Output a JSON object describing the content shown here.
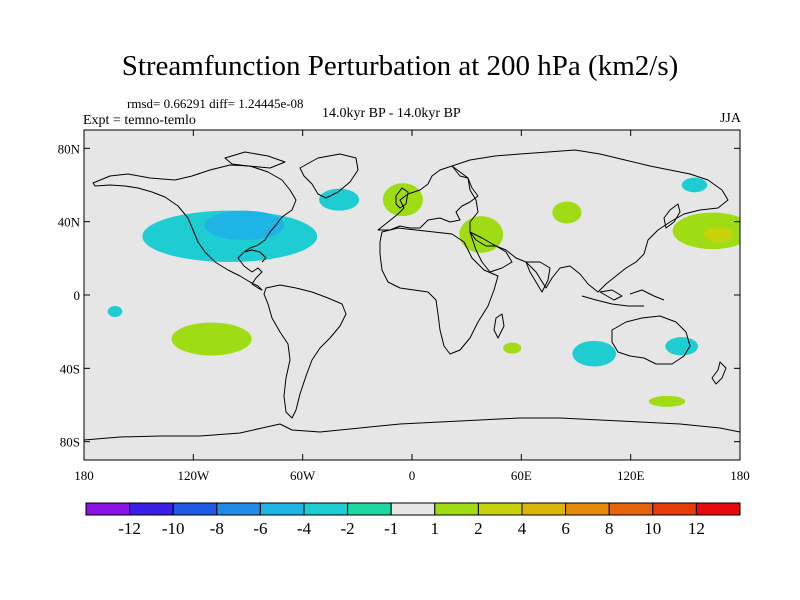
{
  "title": "Streamfunction Perturbation at 200 hPa (km2/s)",
  "stats": "rmsd= 0.66291 diff= 1.24445e-08",
  "experiment": "Expt = temno-temlo",
  "period": "14.0kyr BP - 14.0kyr BP",
  "season": "JJA",
  "chart_data": {
    "type": "heatmap",
    "projection": "cylindrical-equidistant",
    "xlim": [
      -180,
      180
    ],
    "ylim": [
      -90,
      90
    ],
    "lat_ticks": [
      {
        "value": 80,
        "label": "80N"
      },
      {
        "value": 40,
        "label": "40N"
      },
      {
        "value": 0,
        "label": "0"
      },
      {
        "value": -40,
        "label": "40S"
      },
      {
        "value": -80,
        "label": "80S"
      }
    ],
    "lon_ticks": [
      {
        "value": -180,
        "label": "180"
      },
      {
        "value": -120,
        "label": "120W"
      },
      {
        "value": -60,
        "label": "60W"
      },
      {
        "value": 0,
        "label": "0"
      },
      {
        "value": 60,
        "label": "60E"
      },
      {
        "value": 120,
        "label": "120E"
      },
      {
        "value": 180,
        "label": "180"
      }
    ],
    "colorbar": {
      "colors": [
        "#8a14e6",
        "#3a1ee6",
        "#1e5ae6",
        "#1e8ce6",
        "#1eb4e6",
        "#1ecdd2",
        "#1ed7a0",
        "#e6e6e6",
        "#a0dc14",
        "#c8d20a",
        "#dcb40a",
        "#e68c0a",
        "#e6640a",
        "#e63c0a",
        "#e60a0a"
      ],
      "tick_labels": [
        "-12",
        "-10",
        "-8",
        "-6",
        "-4",
        "-2",
        "-1",
        "1",
        "2",
        "4",
        "6",
        "8",
        "10",
        "12"
      ]
    },
    "anomalies": [
      {
        "lon": -100,
        "lat": 32,
        "rlon": 48,
        "rlat": 14,
        "level": "-2"
      },
      {
        "lon": -92,
        "lat": 38,
        "rlon": 22,
        "rlat": 8,
        "level": "-4"
      },
      {
        "lon": -40,
        "lat": 52,
        "rlon": 11,
        "rlat": 6,
        "level": "-2"
      },
      {
        "lon": 155,
        "lat": 60,
        "rlon": 7,
        "rlat": 4,
        "level": "-2"
      },
      {
        "lon": -163,
        "lat": -9,
        "rlon": 4,
        "rlat": 3,
        "level": "-2"
      },
      {
        "lon": 100,
        "lat": -32,
        "rlon": 12,
        "rlat": 7,
        "level": "-2"
      },
      {
        "lon": 148,
        "lat": -28,
        "rlon": 9,
        "rlat": 5,
        "level": "-2"
      },
      {
        "lon": -5,
        "lat": 52,
        "rlon": 11,
        "rlat": 9,
        "level": "1"
      },
      {
        "lon": 38,
        "lat": 33,
        "rlon": 12,
        "rlat": 10,
        "level": "1"
      },
      {
        "lon": 85,
        "lat": 45,
        "rlon": 8,
        "rlat": 6,
        "level": "1"
      },
      {
        "lon": 165,
        "lat": 35,
        "rlon": 22,
        "rlat": 10,
        "level": "1"
      },
      {
        "lon": 168,
        "lat": 33,
        "rlon": 8,
        "rlat": 4,
        "level": "2"
      },
      {
        "lon": -110,
        "lat": -24,
        "rlon": 22,
        "rlat": 9,
        "level": "1"
      },
      {
        "lon": 55,
        "lat": -29,
        "rlon": 5,
        "rlat": 3,
        "level": "1"
      },
      {
        "lon": 140,
        "lat": -58,
        "rlon": 10,
        "rlat": 3,
        "level": "1"
      }
    ]
  }
}
